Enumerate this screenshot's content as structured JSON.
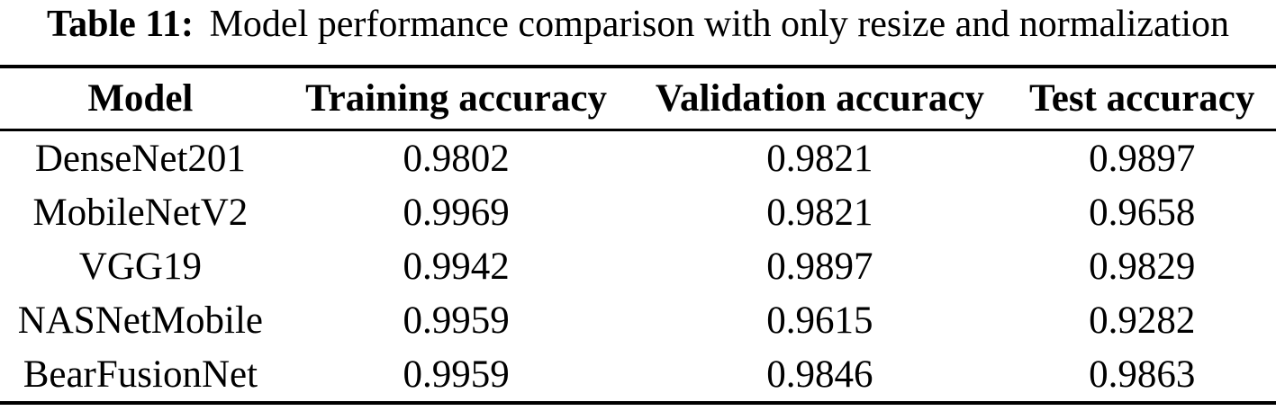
{
  "colors": {
    "background": "#ffffff",
    "text": "#000000",
    "rule": "#000000"
  },
  "caption": {
    "label": "Table 11:",
    "text": "Model performance comparison with only resize and normalization"
  },
  "table": {
    "columns": [
      "Model",
      "Training accuracy",
      "Validation accuracy",
      "Test accuracy"
    ],
    "rows": [
      {
        "model": "DenseNet201",
        "training_accuracy": "0.9802",
        "validation_accuracy": "0.9821",
        "test_accuracy": "0.9897"
      },
      {
        "model": "MobileNetV2",
        "training_accuracy": "0.9969",
        "validation_accuracy": "0.9821",
        "test_accuracy": "0.9658"
      },
      {
        "model": "VGG19",
        "training_accuracy": "0.9942",
        "validation_accuracy": "0.9897",
        "test_accuracy": "0.9829"
      },
      {
        "model": "NASNetMobile",
        "training_accuracy": "0.9959",
        "validation_accuracy": "0.9615",
        "test_accuracy": "0.9282"
      },
      {
        "model": "BearFusionNet",
        "training_accuracy": "0.9959",
        "validation_accuracy": "0.9846",
        "test_accuracy": "0.9863"
      }
    ]
  }
}
